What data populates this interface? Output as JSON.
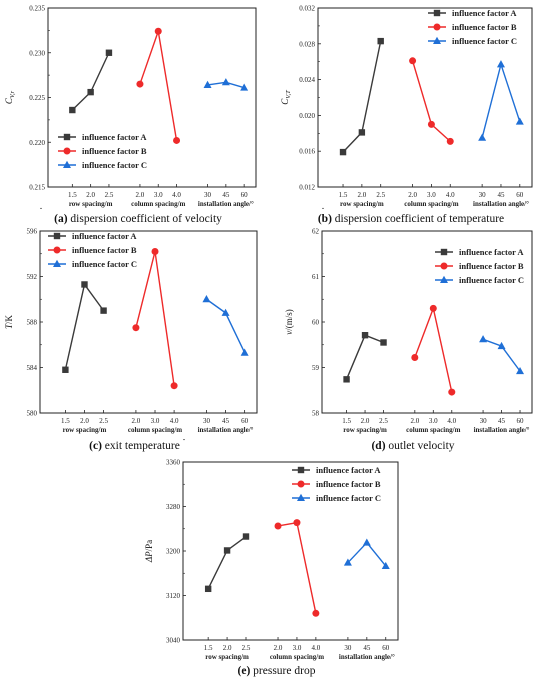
{
  "colors": {
    "A": "#3a3a3a",
    "B": "#ee2a2a",
    "C": "#1f6fd6"
  },
  "legend_labels": [
    "influence factor A",
    "influence factor B",
    "influence factor C"
  ],
  "group_labels": [
    "row spacing/m",
    "column spacing/m",
    "installation angle/°"
  ],
  "chart_data": [
    {
      "id": "a",
      "type": "line",
      "panel_letter": "(a)",
      "caption": "dispersion coefficient of velocity",
      "ylabel": "C_V,r",
      "ylabel_main": "C",
      "ylabel_sub": "V,r",
      "ylim": [
        0.215,
        0.235
      ],
      "yticks": [
        "0.215",
        "0.220",
        "0.225",
        "0.230",
        "0.235"
      ],
      "legend_position": "bottom-left",
      "grid": false,
      "series": [
        {
          "name": "influence factor A",
          "marker": "square",
          "x": [
            "1.5",
            "2.0",
            "2.5"
          ],
          "values": [
            0.2236,
            0.2256,
            0.23
          ]
        },
        {
          "name": "influence factor B",
          "marker": "circle",
          "x": [
            "2.0",
            "3.0",
            "4.0"
          ],
          "values": [
            0.2265,
            0.2324,
            0.2202
          ]
        },
        {
          "name": "influence factor C",
          "marker": "triangle",
          "x": [
            "30",
            "45",
            "60"
          ],
          "values": [
            0.2264,
            0.2267,
            0.2261
          ]
        }
      ]
    },
    {
      "id": "b",
      "type": "line",
      "panel_letter": "(b)",
      "caption": "dispersion coefficient of temperature",
      "ylabel": "C_V,T",
      "ylabel_main": "C",
      "ylabel_sub": "V,T",
      "ylim": [
        0.012,
        0.032
      ],
      "yticks": [
        "0.012",
        "0.016",
        "0.020",
        "0.024",
        "0.028",
        "0.032"
      ],
      "legend_position": "top-right",
      "grid": false,
      "series": [
        {
          "name": "influence factor A",
          "marker": "square",
          "x": [
            "1.5",
            "2.0",
            "2.5"
          ],
          "values": [
            0.0159,
            0.0181,
            0.0283
          ]
        },
        {
          "name": "influence factor B",
          "marker": "circle",
          "x": [
            "2.0",
            "3.0",
            "4.0"
          ],
          "values": [
            0.0261,
            0.019,
            0.0171
          ]
        },
        {
          "name": "influence factor C",
          "marker": "triangle",
          "x": [
            "30",
            "45",
            "60"
          ],
          "values": [
            0.0175,
            0.0257,
            0.0193
          ]
        }
      ]
    },
    {
      "id": "c",
      "type": "line",
      "panel_letter": "(c)",
      "caption": "exit temperature",
      "ylabel": "T/K",
      "ylabel_main": "T",
      "ylabel_sub": "",
      "ylabel_suffix": "/K",
      "ylim": [
        580,
        596
      ],
      "yticks": [
        "580",
        "584",
        "588",
        "592",
        "596"
      ],
      "legend_position": "top-left",
      "grid": false,
      "series": [
        {
          "name": "influence factor A",
          "marker": "square",
          "x": [
            "1.5",
            "2.0",
            "2.5"
          ],
          "values": [
            583.8,
            591.3,
            589.0
          ]
        },
        {
          "name": "influence factor B",
          "marker": "circle",
          "x": [
            "2.0",
            "3.0",
            "4.0"
          ],
          "values": [
            587.5,
            594.2,
            582.4
          ]
        },
        {
          "name": "influence factor C",
          "marker": "triangle",
          "x": [
            "30",
            "45",
            "60"
          ],
          "values": [
            590.0,
            588.8,
            585.3
          ]
        }
      ]
    },
    {
      "id": "d",
      "type": "line",
      "panel_letter": "(d)",
      "caption": "outlet velocity",
      "ylabel": "v/(m/s)",
      "ylabel_main": "v",
      "ylabel_sub": "",
      "ylabel_suffix": "/(m/s)",
      "ylim": [
        58,
        62
      ],
      "yticks": [
        "58",
        "59",
        "60",
        "61",
        "62"
      ],
      "legend_position": "top-right",
      "grid": false,
      "series": [
        {
          "name": "influence factor A",
          "marker": "square",
          "x": [
            "1.5",
            "2.0",
            "2.5"
          ],
          "values": [
            58.74,
            59.71,
            59.55
          ]
        },
        {
          "name": "influence factor B",
          "marker": "circle",
          "x": [
            "2.0",
            "3.0",
            "4.0"
          ],
          "values": [
            59.22,
            60.3,
            58.46
          ]
        },
        {
          "name": "influence factor C",
          "marker": "triangle",
          "x": [
            "30",
            "45",
            "60"
          ],
          "values": [
            59.62,
            59.47,
            58.92
          ]
        }
      ]
    },
    {
      "id": "e",
      "type": "line",
      "panel_letter": "(e)",
      "caption": "pressure drop",
      "ylabel": "ΔP/Pa",
      "ylabel_main": "ΔP",
      "ylabel_sub": "",
      "ylabel_suffix": "/Pa",
      "ylim": [
        3040,
        3360
      ],
      "yticks": [
        "3040",
        "3120",
        "3200",
        "3280",
        "3360"
      ],
      "legend_position": "top-right",
      "grid": false,
      "series": [
        {
          "name": "influence factor A",
          "marker": "square",
          "x": [
            "1.5",
            "2.0",
            "2.5"
          ],
          "values": [
            3132,
            3201,
            3226
          ]
        },
        {
          "name": "influence factor B",
          "marker": "circle",
          "x": [
            "2.0",
            "3.0",
            "4.0"
          ],
          "values": [
            3245,
            3251,
            3088
          ]
        },
        {
          "name": "influence factor C",
          "marker": "triangle",
          "x": [
            "30",
            "45",
            "60"
          ],
          "values": [
            3179,
            3215,
            3173
          ]
        }
      ]
    }
  ]
}
